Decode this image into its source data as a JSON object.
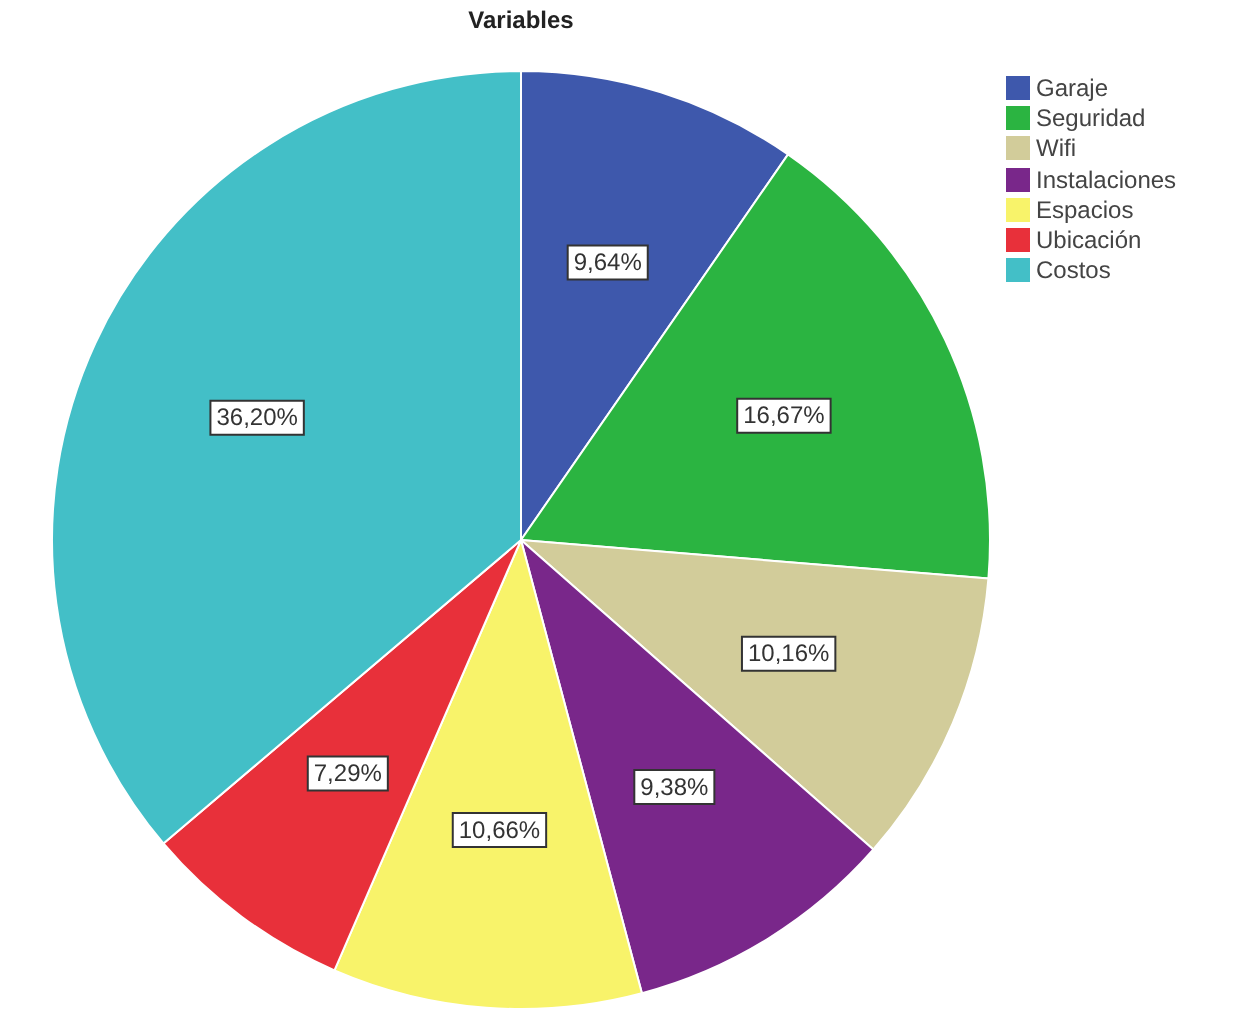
{
  "chart_data": {
    "type": "pie",
    "title": "Variables",
    "categories": [
      "Garaje",
      "Seguridad",
      "Wifi",
      "Instalaciones",
      "Espacios",
      "Ubicación",
      "Costos"
    ],
    "values": [
      9.64,
      16.67,
      10.16,
      9.38,
      10.66,
      7.29,
      36.2
    ],
    "colors": [
      "#3e58ac",
      "#2bb441",
      "#d2cc9a",
      "#79278a",
      "#f8f36a",
      "#e8303a",
      "#43bfc7"
    ],
    "value_labels": [
      "9,64%",
      "16,67%",
      "10,16%",
      "9,38%",
      "10,66%",
      "7,29%",
      "36,20%"
    ],
    "legend": "top right"
  }
}
